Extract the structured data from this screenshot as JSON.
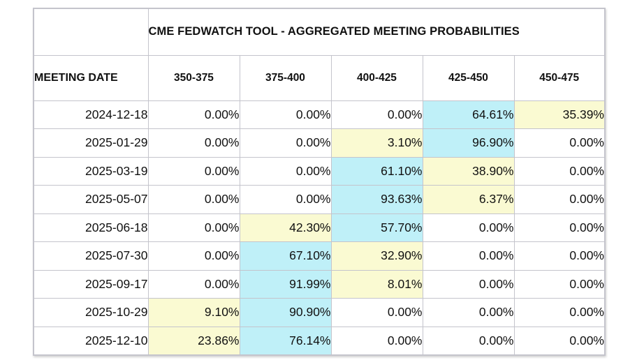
{
  "chart_data": {
    "type": "table",
    "title": "CME FEDWATCH TOOL - AGGREGATED MEETING PROBABILITIES",
    "row_header": "MEETING DATE",
    "columns": [
      "350-375",
      "375-400",
      "400-425",
      "425-450",
      "450-475"
    ],
    "rows": [
      {
        "date": "2024-12-18",
        "values": [
          "0.00%",
          "0.00%",
          "0.00%",
          "64.61%",
          "35.39%"
        ]
      },
      {
        "date": "2025-01-29",
        "values": [
          "0.00%",
          "0.00%",
          "3.10%",
          "96.90%",
          "0.00%"
        ]
      },
      {
        "date": "2025-03-19",
        "values": [
          "0.00%",
          "0.00%",
          "61.10%",
          "38.90%",
          "0.00%"
        ]
      },
      {
        "date": "2025-05-07",
        "values": [
          "0.00%",
          "0.00%",
          "93.63%",
          "6.37%",
          "0.00%"
        ]
      },
      {
        "date": "2025-06-18",
        "values": [
          "0.00%",
          "42.30%",
          "57.70%",
          "0.00%",
          "0.00%"
        ]
      },
      {
        "date": "2025-07-30",
        "values": [
          "0.00%",
          "67.10%",
          "32.90%",
          "0.00%",
          "0.00%"
        ]
      },
      {
        "date": "2025-09-17",
        "values": [
          "0.00%",
          "91.99%",
          "8.01%",
          "0.00%",
          "0.00%"
        ]
      },
      {
        "date": "2025-10-29",
        "values": [
          "9.10%",
          "90.90%",
          "0.00%",
          "0.00%",
          "0.00%"
        ]
      },
      {
        "date": "2025-12-10",
        "values": [
          "23.86%",
          "76.14%",
          "0.00%",
          "0.00%",
          "0.00%"
        ]
      }
    ],
    "colors": {
      "highest": "#bff0f8",
      "second_highest": "#fafad2",
      "border": "#c4c4cc"
    }
  }
}
